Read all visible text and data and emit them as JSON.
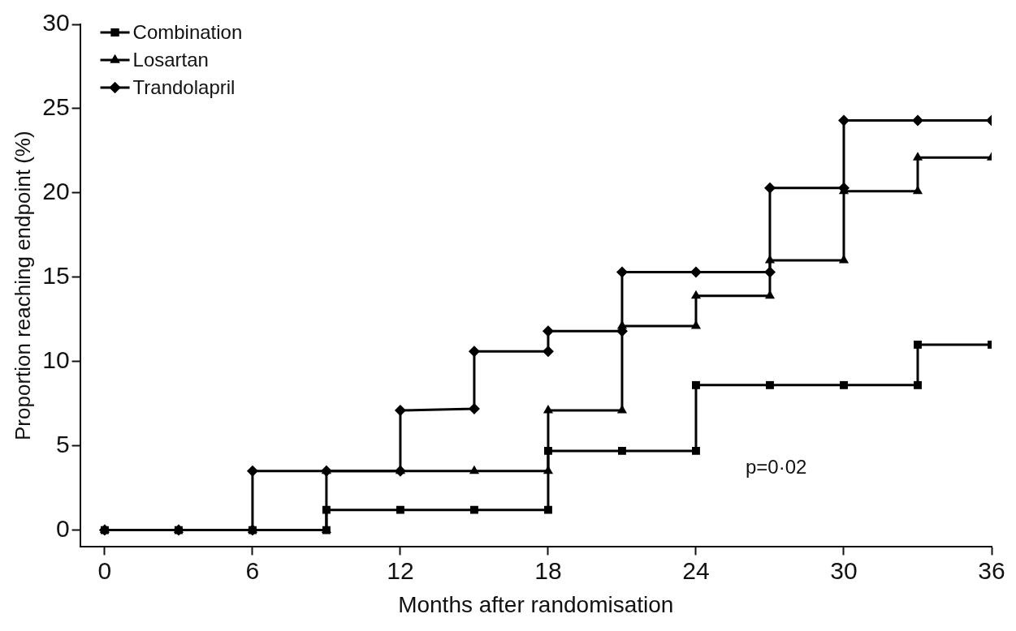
{
  "chart_data": {
    "type": "line",
    "xlabel": "Months after randomisation",
    "ylabel": "Proportion reaching endpoint (%)",
    "xlim": [
      -1,
      36
    ],
    "xticks": [
      0,
      6,
      12,
      18,
      24,
      30,
      36
    ],
    "ylim": [
      -1,
      30
    ],
    "yticks": [
      0,
      5,
      10,
      15,
      20,
      25,
      30
    ],
    "grid": false,
    "legend": "top left",
    "line_style": "solid",
    "annotations": [
      "p=0·02"
    ],
    "series": [
      {
        "name": "Combination",
        "color": "#000000",
        "marker": "square",
        "x": [
          0,
          3,
          6,
          9,
          9,
          12,
          15,
          18,
          18,
          21,
          24,
          24,
          27,
          30,
          33,
          33,
          36
        ],
        "values": [
          0,
          0,
          0,
          0,
          1.2,
          1.2,
          1.2,
          1.2,
          4.7,
          4.7,
          4.7,
          8.6,
          8.6,
          8.6,
          8.6,
          11,
          11
        ]
      },
      {
        "name": "Losartan",
        "color": "#000000",
        "marker": "triangle",
        "x": [
          0,
          3,
          6,
          9,
          9,
          12,
          15,
          18,
          18,
          21,
          21,
          24,
          24,
          27,
          27,
          30,
          30,
          33,
          33,
          36
        ],
        "values": [
          0,
          0,
          0,
          0,
          3.5,
          3.5,
          3.5,
          3.5,
          7.1,
          7.1,
          12.1,
          12.1,
          13.9,
          13.9,
          16,
          16,
          20.1,
          20.1,
          22.1,
          22.1
        ]
      },
      {
        "name": "Trandolapril",
        "color": "#000000",
        "marker": "diamond",
        "x": [
          0,
          3,
          6,
          6,
          9,
          12,
          12,
          15,
          15,
          18,
          18,
          21,
          21,
          24,
          27,
          27,
          30,
          30,
          33,
          36
        ],
        "values": [
          0,
          0,
          0,
          3.5,
          3.5,
          3.5,
          7.1,
          7.2,
          10.6,
          10.6,
          11.8,
          11.8,
          15.3,
          15.3,
          15.3,
          20.3,
          20.3,
          24.3,
          24.3,
          24.3
        ]
      }
    ]
  }
}
